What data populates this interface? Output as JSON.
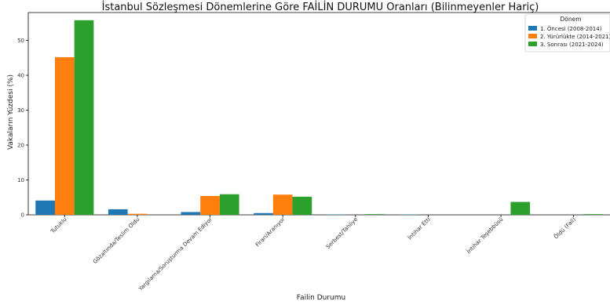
{
  "chart_data": {
    "type": "bar",
    "title": "İstanbul Sözleşmesi Dönemlerine Göre FAİLİN DURUMU Oranları (Bilinmeyenler Hariç)",
    "xlabel": "Failin Durumu",
    "ylabel": "Vakaların Yüzdesi (%)",
    "ylim": [
      0,
      58
    ],
    "yticks": [
      0,
      10,
      20,
      30,
      40,
      50
    ],
    "grid": false,
    "legend_placement": "top-right",
    "legend_title": "Dönem",
    "categories": [
      "Tutuklu",
      "Gözaltında/Teslim Oldu",
      "Yargılama/Soruşturma Devam Ediyor",
      "Firari/Aranıyor",
      "Serbest/Tahliye",
      "İntihar Etti",
      "İntihar Teşebbüsü",
      "Öldü (Fail)"
    ],
    "series": [
      {
        "name": "1. Öncesi (2008-2014)",
        "color": "#1f77b4",
        "values": [
          4.1,
          1.6,
          0.8,
          0.5,
          0.1,
          0.1,
          0,
          0
        ]
      },
      {
        "name": "2. Yürürlükte (2014-2021)",
        "color": "#ff7f0e",
        "values": [
          45.2,
          0.3,
          5.4,
          5.8,
          0,
          0,
          0,
          0
        ]
      },
      {
        "name": "3. Sonrası (2021-2024)",
        "color": "#2ca02c",
        "values": [
          55.8,
          0,
          5.9,
          5.2,
          0.2,
          0,
          3.7,
          0.2
        ]
      }
    ]
  }
}
